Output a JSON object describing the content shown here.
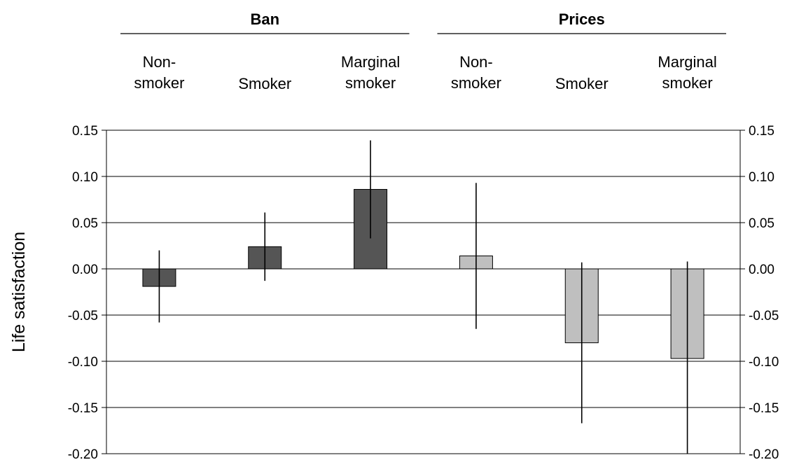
{
  "chart_data": {
    "type": "bar",
    "title": "",
    "xlabel": "",
    "ylabel": "Life satisfaction",
    "ylim": [
      -0.2,
      0.15
    ],
    "yticks": [
      "0.15",
      "0.10",
      "0.05",
      "0.00",
      "-0.05",
      "-0.10",
      "-0.15",
      "-0.20"
    ],
    "ytick_values": [
      0.15,
      0.1,
      0.05,
      0.0,
      -0.05,
      -0.1,
      -0.15,
      -0.2
    ],
    "grid": true,
    "groups": [
      {
        "name": "Ban",
        "color": "#555555",
        "categories": [
          {
            "lines": [
              "Non-",
              "smoker"
            ],
            "value": -0.019,
            "error_low": -0.058,
            "error_high": 0.02
          },
          {
            "lines": [
              "Smoker"
            ],
            "value": 0.024,
            "error_low": -0.013,
            "error_high": 0.061
          },
          {
            "lines": [
              "Marginal",
              "smoker"
            ],
            "value": 0.086,
            "error_low": 0.033,
            "error_high": 0.139
          }
        ]
      },
      {
        "name": "Prices",
        "color": "#bfbfbf",
        "categories": [
          {
            "lines": [
              "Non-",
              "smoker"
            ],
            "value": 0.014,
            "error_low": -0.065,
            "error_high": 0.093
          },
          {
            "lines": [
              "Smoker"
            ],
            "value": -0.08,
            "error_low": -0.167,
            "error_high": 0.007
          },
          {
            "lines": [
              "Marginal",
              "smoker"
            ],
            "value": -0.097,
            "error_low": -0.2,
            "error_high": 0.008
          }
        ]
      }
    ]
  }
}
